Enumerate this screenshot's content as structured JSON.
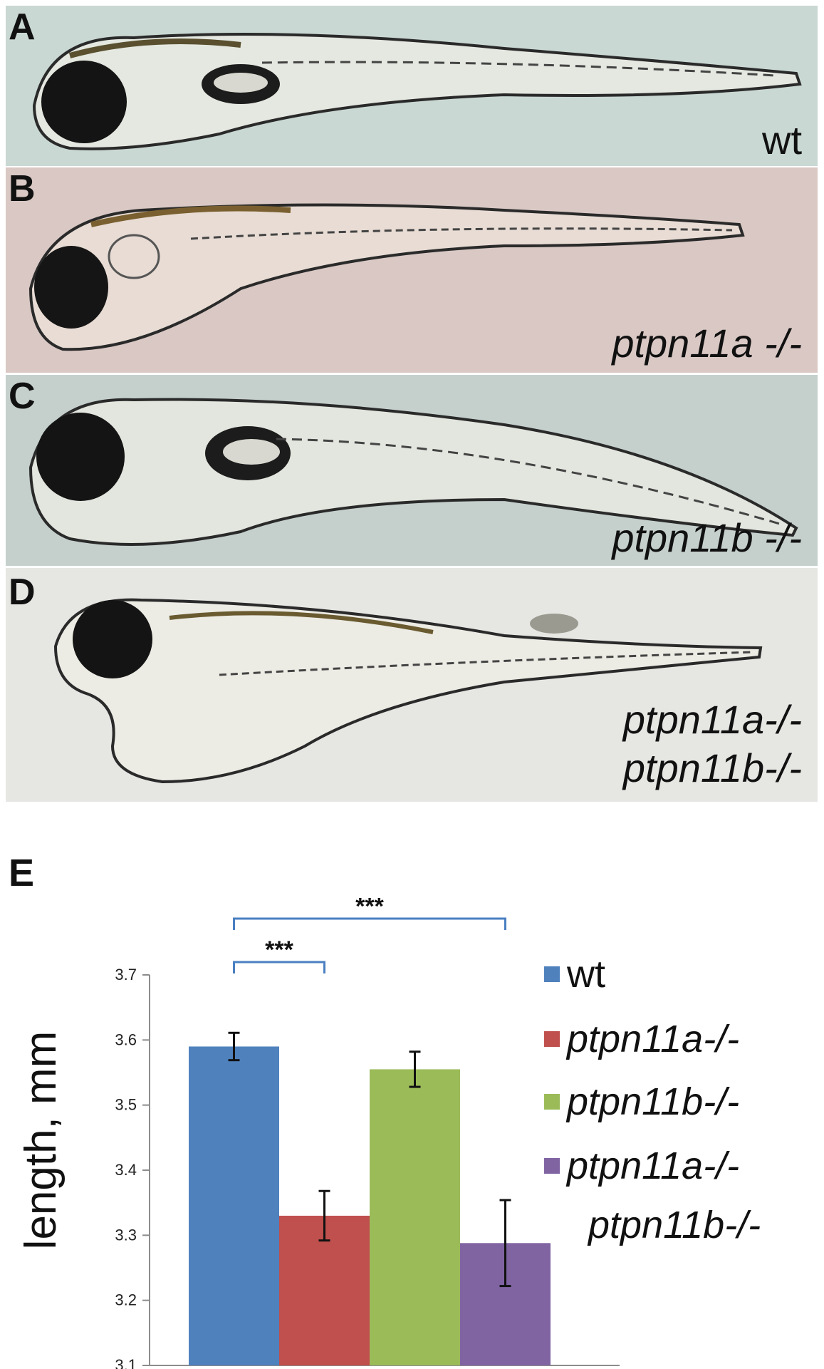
{
  "panels": [
    {
      "letter": "A",
      "genotype_lines": [
        "wt"
      ],
      "italic": false,
      "background": "#c9d8d2"
    },
    {
      "letter": "B",
      "genotype_lines": [
        "ptpn11a -/-"
      ],
      "italic": true,
      "background": "#d9c8c4"
    },
    {
      "letter": "C",
      "genotype_lines": [
        "ptpn11b -/-"
      ],
      "italic": true,
      "background": "#c5d0cc"
    },
    {
      "letter": "D",
      "genotype_lines": [
        "ptpn11a-/-",
        "ptpn11b-/-"
      ],
      "italic": true,
      "background": "#e6e6e3"
    }
  ],
  "chart_letter": "E",
  "chart_data": {
    "type": "bar",
    "ylabel": "length, mm",
    "ylim": [
      3.1,
      3.7
    ],
    "yticks": [
      "3.1",
      "3.2",
      "3.3",
      "3.4",
      "3.5",
      "3.6",
      "3.7"
    ],
    "categories": [
      "wt",
      "ptpn11a-/-",
      "ptpn11b-/-",
      "ptpn11a-/- ptpn11b-/-"
    ],
    "values": [
      3.59,
      3.33,
      3.555,
      3.288
    ],
    "errors": [
      0.021,
      0.038,
      0.027,
      0.066
    ],
    "colors": [
      "#4f81bd",
      "#c0504d",
      "#9bbb59",
      "#8064a2"
    ],
    "significance": [
      {
        "from": 0,
        "to": 1,
        "label": "***"
      },
      {
        "from": 0,
        "to": 3,
        "label": "***"
      }
    ],
    "legend": {
      "placement": "right",
      "entries": [
        {
          "lines": [
            "wt"
          ],
          "italic": false
        },
        {
          "lines": [
            "ptpn11a-/-"
          ],
          "italic": true
        },
        {
          "lines": [
            "ptpn11b-/-"
          ],
          "italic": true
        },
        {
          "lines": [
            "ptpn11a-/-",
            "ptpn11b-/-"
          ],
          "italic": true
        }
      ]
    },
    "grid": false
  }
}
